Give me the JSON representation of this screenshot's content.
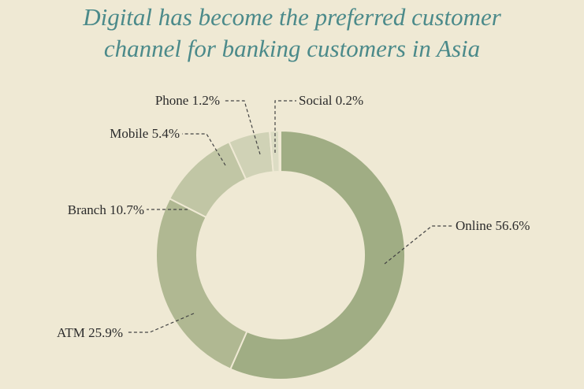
{
  "page": {
    "title_line1": "Digital has become the preferred customer",
    "title_line2": "channel for banking customers in Asia"
  },
  "chart_data": {
    "type": "pie",
    "variant": "donut",
    "title": "Digital has become the preferred customer channel for banking customers in Asia",
    "slices": [
      {
        "label": "Online",
        "value": 56.6,
        "display": "Online 56.6%",
        "color": "#a0ad84"
      },
      {
        "label": "ATM",
        "value": 25.9,
        "display": "ATM 25.9%",
        "color": "#b0b892"
      },
      {
        "label": "Branch",
        "value": 10.7,
        "display": "Branch 10.7%",
        "color": "#c1c6a5"
      },
      {
        "label": "Mobile",
        "value": 5.4,
        "display": "Mobile 5.4%",
        "color": "#d0d2b6"
      },
      {
        "label": "Phone",
        "value": 1.2,
        "display": "Phone 1.2%",
        "color": "#dcdcc4"
      },
      {
        "label": "Social",
        "value": 0.2,
        "display": "Social 0.2%",
        "color": "#e6e3cf"
      }
    ],
    "colors": {
      "background": "#efe9d4",
      "title": "#4b8a8a"
    }
  }
}
